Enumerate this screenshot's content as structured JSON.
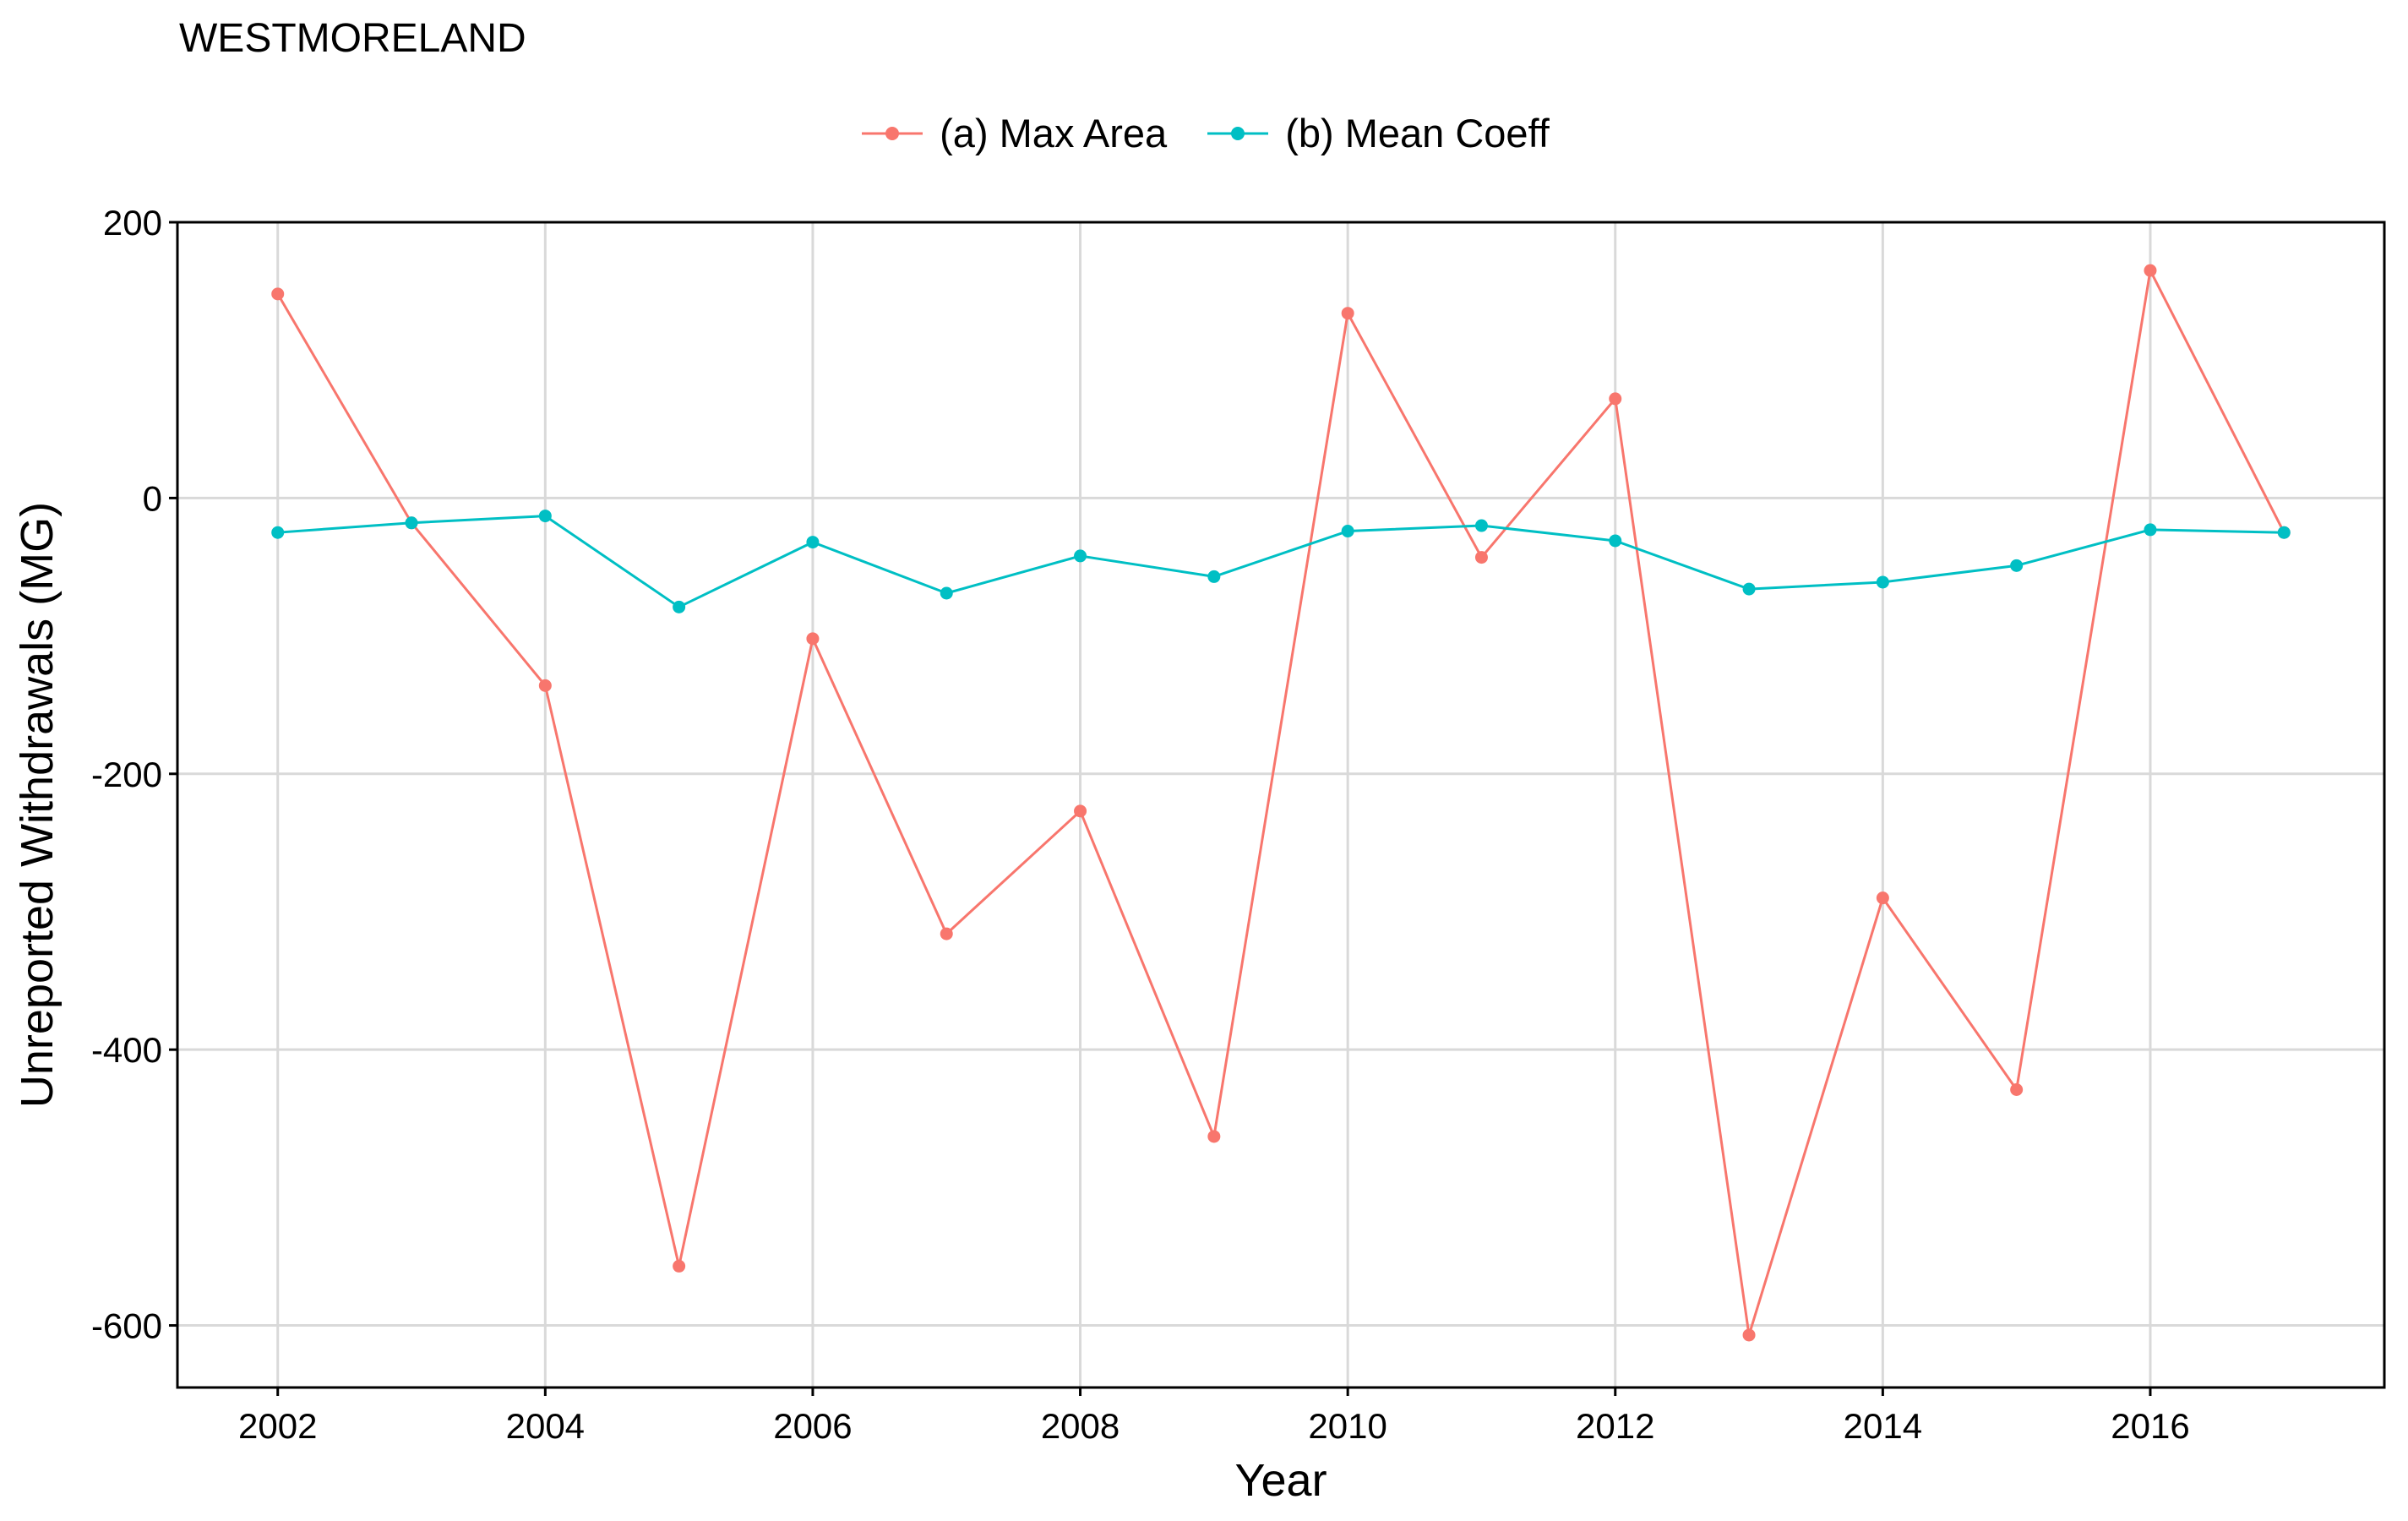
{
  "chart_data": {
    "type": "line",
    "title": "WESTMORELAND",
    "xlabel": "Year",
    "ylabel": "Unreported Withdrawals (MG)",
    "x": [
      2002,
      2003,
      2004,
      2005,
      2006,
      2007,
      2008,
      2009,
      2010,
      2011,
      2012,
      2013,
      2014,
      2015,
      2016,
      2017
    ],
    "xlim": [
      2001.25,
      2017.75
    ],
    "ylim": [
      -645,
      200
    ],
    "xticks": [
      2002,
      2004,
      2006,
      2008,
      2010,
      2012,
      2014,
      2016
    ],
    "xtick_labels": [
      "2002",
      "2004",
      "2006",
      "2008",
      "2010",
      "2012",
      "2014",
      "2016"
    ],
    "yticks": [
      200,
      0,
      -200,
      -400,
      -600
    ],
    "ytick_labels": [
      "200",
      "0",
      "-200",
      "-400",
      "-600"
    ],
    "grid": true,
    "legend_position": "top",
    "series": [
      {
        "name": "(a) Max Area",
        "color": "#F8766D",
        "values": [
          148,
          -18,
          -136,
          -557,
          -102,
          -316,
          -227,
          -463,
          134,
          -43,
          72,
          -607,
          -290,
          -429,
          165,
          -25
        ]
      },
      {
        "name": "(b) Mean Coeff",
        "color": "#00BFC4",
        "values": [
          -25,
          -18,
          -13,
          -79,
          -32,
          -69,
          -42,
          -57,
          -24,
          -20,
          -31,
          -66,
          -61,
          -49,
          -23,
          -25
        ]
      }
    ]
  }
}
